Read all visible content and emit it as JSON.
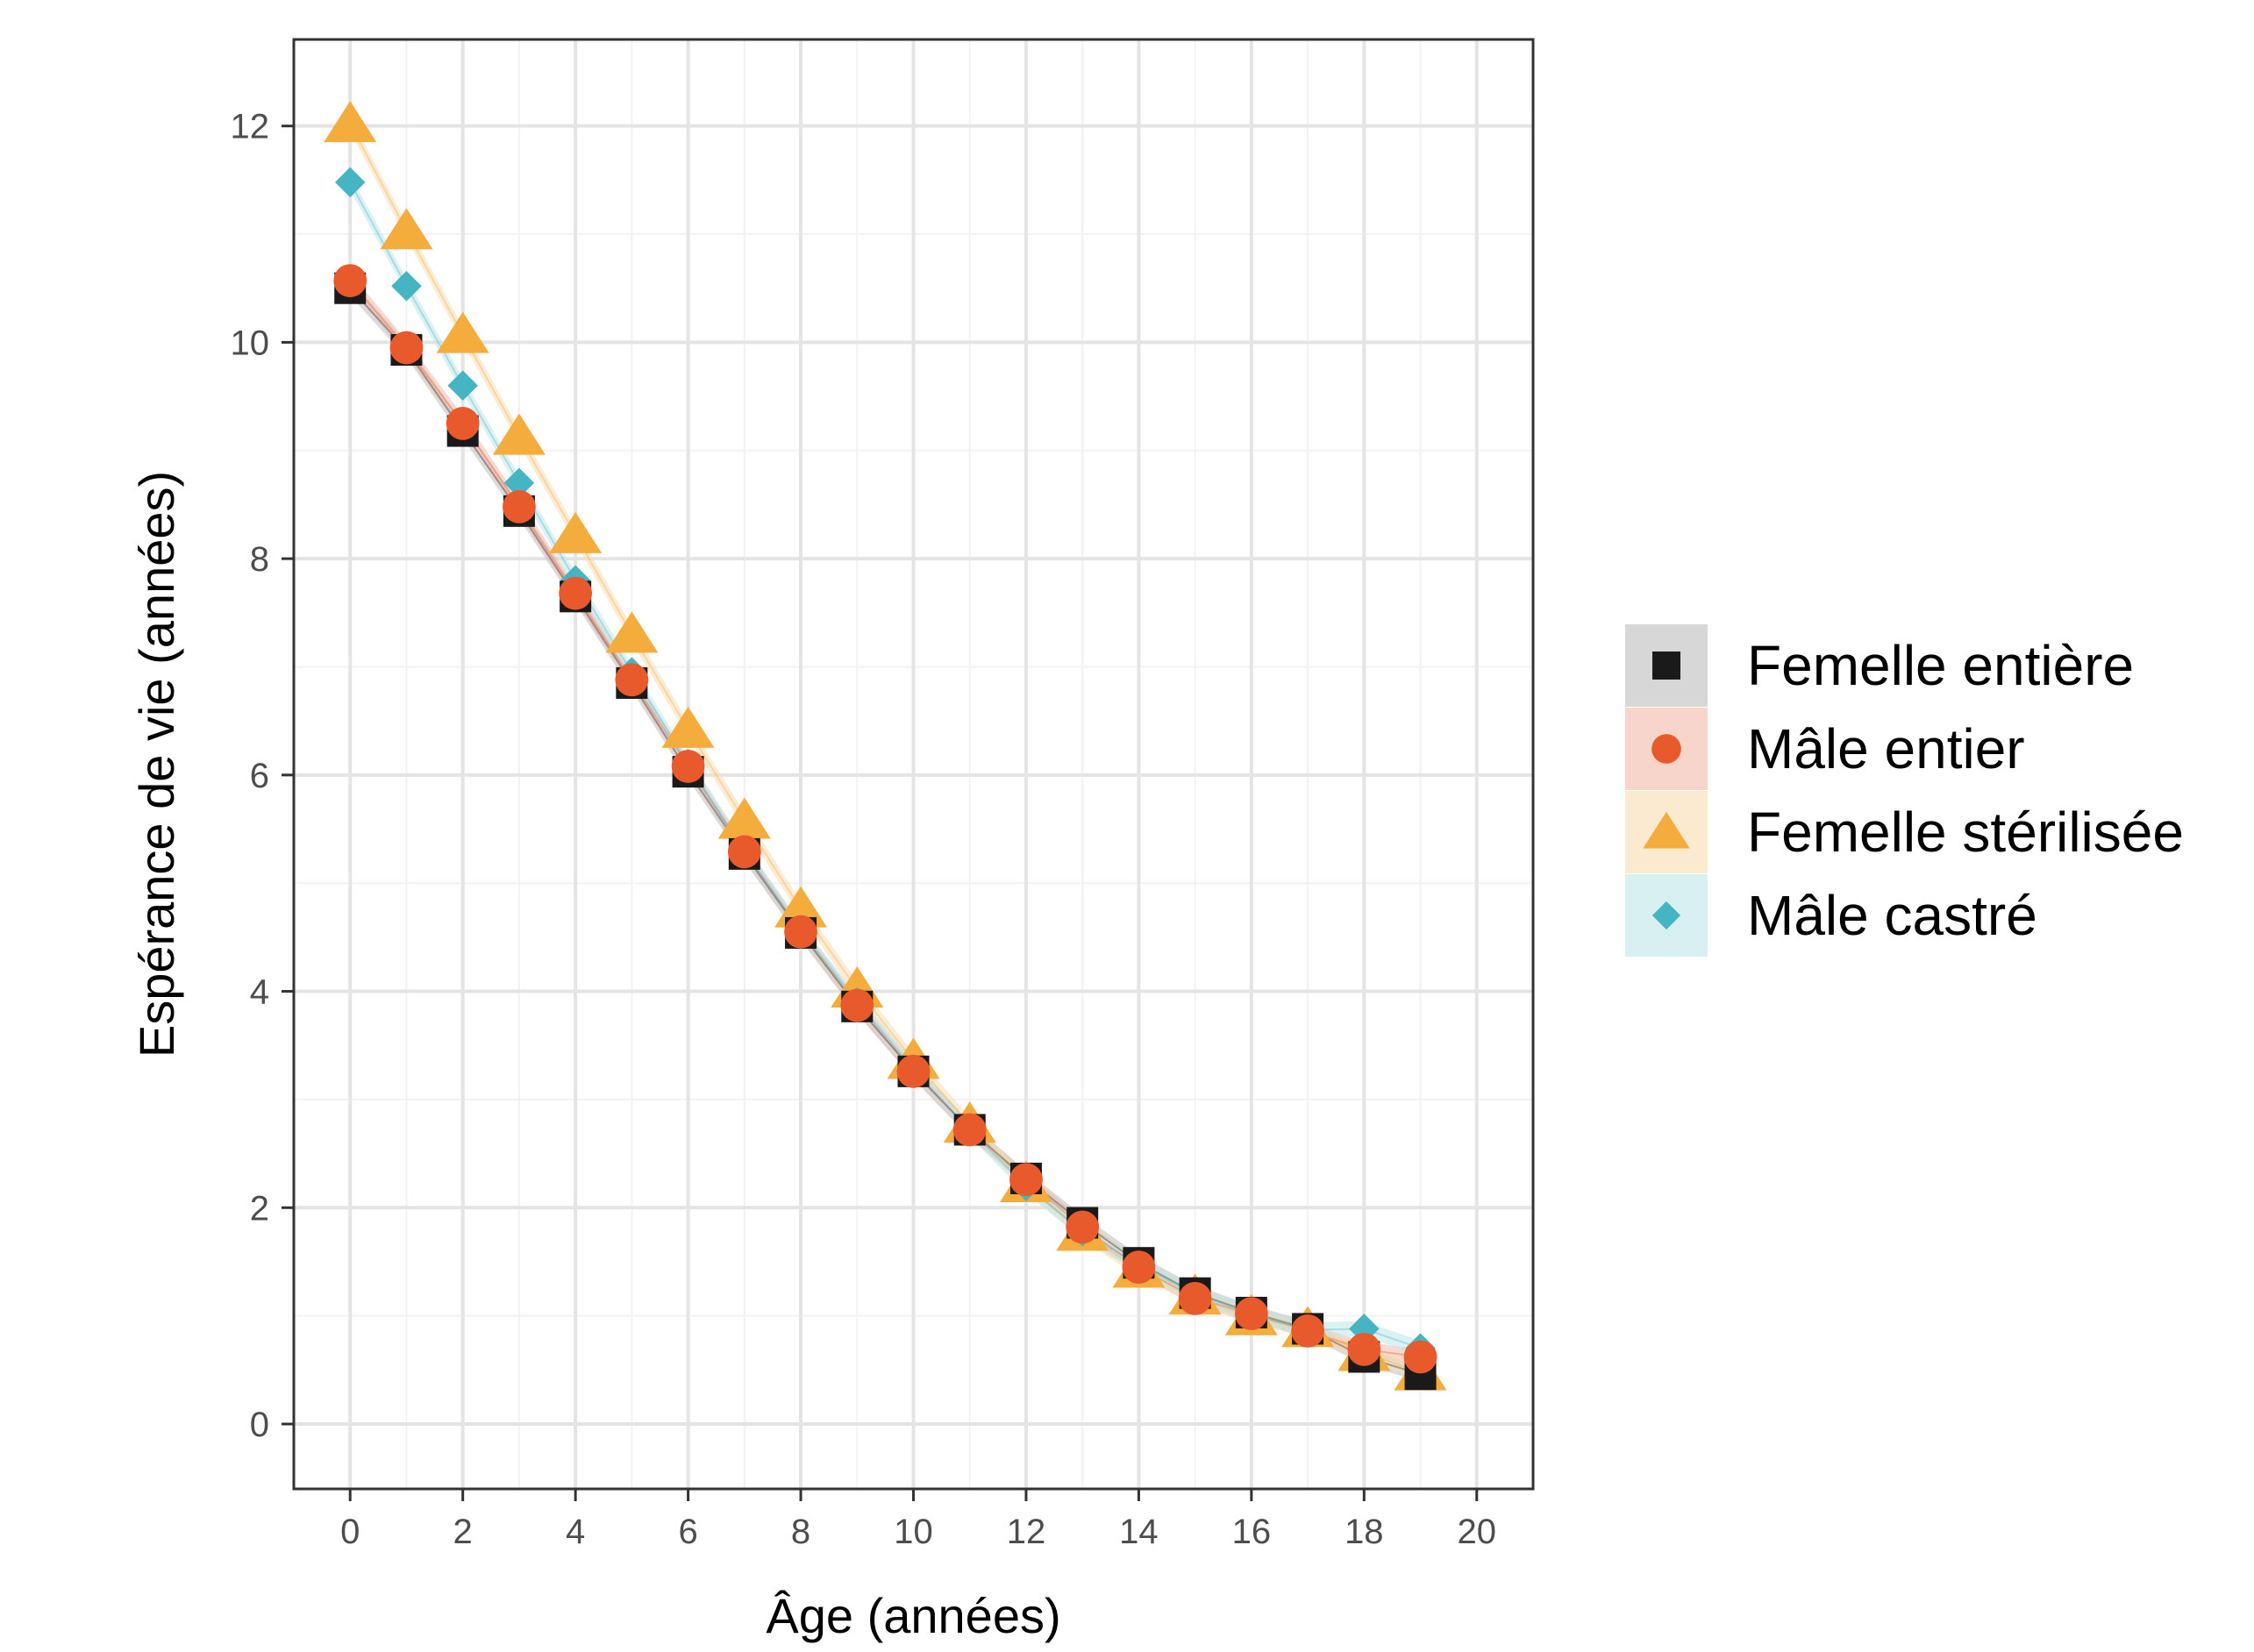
{
  "chart_data": {
    "type": "scatter",
    "title": "",
    "xlabel": "Âge (années)",
    "ylabel": "Espérance de vie (années)",
    "xlim": [
      -1,
      21
    ],
    "ylim": [
      -0.6,
      12.8
    ],
    "x_ticks": [
      0,
      2,
      4,
      6,
      8,
      10,
      12,
      14,
      16,
      18,
      20
    ],
    "y_ticks": [
      0,
      2,
      4,
      6,
      8,
      10,
      12
    ],
    "grid": true,
    "legend_position": "right",
    "x": [
      0,
      1,
      2,
      3,
      4,
      5,
      6,
      7,
      8,
      9,
      10,
      11,
      12,
      13,
      14,
      15,
      16,
      17,
      18,
      19
    ],
    "series": [
      {
        "name": "Femelle entière",
        "marker": "square",
        "color": "#1a1a1a",
        "band_color": "#bdbdbd",
        "values": [
          10.5,
          9.93,
          9.18,
          8.44,
          7.65,
          6.85,
          6.03,
          5.27,
          4.54,
          3.86,
          3.26,
          2.72,
          2.27,
          1.86,
          1.49,
          1.21,
          1.03,
          0.88,
          0.62,
          0.46
        ]
      },
      {
        "name": "Mâle entier",
        "marker": "circle",
        "color": "#e8592c",
        "band_color": "#f3b9a8",
        "values": [
          10.57,
          9.95,
          9.25,
          8.48,
          7.68,
          6.88,
          6.08,
          5.29,
          4.55,
          3.87,
          3.26,
          2.72,
          2.26,
          1.82,
          1.45,
          1.16,
          1.02,
          0.86,
          0.69,
          0.62
        ]
      },
      {
        "name": "Femelle stérilisée",
        "marker": "triangle",
        "color": "#f4ad3d",
        "band_color": "#f9dcb0",
        "values": [
          12.02,
          11.03,
          10.07,
          9.13,
          8.22,
          7.3,
          6.42,
          5.58,
          4.76,
          4.02,
          3.36,
          2.77,
          2.22,
          1.77,
          1.43,
          1.18,
          0.99,
          0.88,
          0.66,
          0.48
        ]
      },
      {
        "name": "Mâle castré",
        "marker": "diamond",
        "color": "#45b5c4",
        "band_color": "#bfe6eb",
        "values": [
          11.48,
          10.52,
          9.6,
          8.7,
          7.8,
          6.95,
          6.1,
          5.3,
          4.56,
          3.9,
          3.28,
          2.72,
          2.2,
          1.78,
          1.47,
          1.2,
          1.02,
          0.87,
          0.88,
          0.7
        ]
      }
    ]
  }
}
